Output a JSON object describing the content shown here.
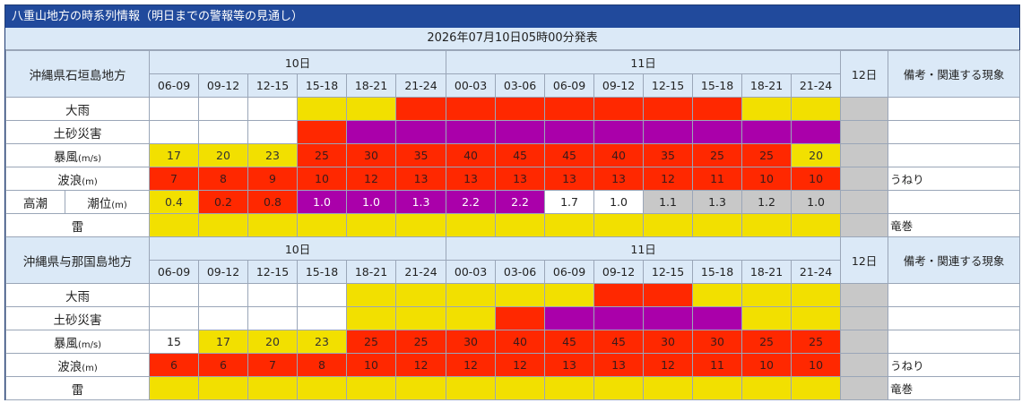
{
  "title": "八重山地方の時系列情報（明日までの警報等の見通し）",
  "issued": "2026年07月10日05時00分発表",
  "day_labels": {
    "d1": "10日",
    "d2": "11日",
    "d3": "12日"
  },
  "remarks_header": "備考・関連する現象",
  "time_slots": [
    "06-09",
    "09-12",
    "12-15",
    "15-18",
    "18-21",
    "21-24",
    "00-03",
    "03-06",
    "06-09",
    "09-12",
    "12-15",
    "15-18",
    "18-21",
    "21-24"
  ],
  "colors": {
    "white": "#ffffff",
    "yellow": "#f2e000",
    "red": "#ff2800",
    "purple": "#aa00aa",
    "gray": "#c8c8c8",
    "header_bg": "#dbe9f7",
    "title_bg": "#214a9c"
  },
  "areas": [
    {
      "name": "沖縄県石垣島地方",
      "rows": [
        {
          "label": "大雨",
          "unit": "",
          "values": [
            "",
            "",
            "",
            "",
            "",
            "",
            "",
            "",
            "",
            "",
            "",
            "",
            "",
            ""
          ],
          "levels": [
            "w",
            "w",
            "w",
            "y",
            "y",
            "r",
            "r",
            "r",
            "r",
            "r",
            "r",
            "r",
            "y",
            "y"
          ],
          "remark": ""
        },
        {
          "label": "土砂災害",
          "unit": "",
          "values": [
            "",
            "",
            "",
            "",
            "",
            "",
            "",
            "",
            "",
            "",
            "",
            "",
            "",
            ""
          ],
          "levels": [
            "w",
            "w",
            "w",
            "r",
            "p",
            "p",
            "p",
            "p",
            "p",
            "p",
            "p",
            "p",
            "p",
            "p"
          ],
          "remark": ""
        },
        {
          "label": "暴風",
          "unit": "(m/s)",
          "values": [
            "17",
            "20",
            "23",
            "25",
            "30",
            "35",
            "40",
            "45",
            "45",
            "40",
            "35",
            "25",
            "25",
            "20"
          ],
          "levels": [
            "y",
            "y",
            "y",
            "r",
            "r",
            "r",
            "r",
            "r",
            "r",
            "r",
            "r",
            "r",
            "r",
            "y"
          ],
          "remark": ""
        },
        {
          "label": "波浪",
          "unit": "(m)",
          "values": [
            "7",
            "8",
            "9",
            "10",
            "12",
            "13",
            "13",
            "13",
            "13",
            "13",
            "12",
            "11",
            "10",
            "10"
          ],
          "levels": [
            "r",
            "r",
            "r",
            "r",
            "r",
            "r",
            "r",
            "r",
            "r",
            "r",
            "r",
            "r",
            "r",
            "r"
          ],
          "remark": "うねり"
        },
        {
          "label": "潮位",
          "prefix": "高潮",
          "unit": "(m)",
          "values": [
            "0.4",
            "0.2",
            "0.8",
            "1.0",
            "1.0",
            "1.3",
            "2.2",
            "2.2",
            "1.7",
            "1.0",
            "1.1",
            "1.3",
            "1.2",
            "1.0"
          ],
          "levels": [
            "y",
            "r",
            "r",
            "p",
            "p",
            "p",
            "p",
            "p",
            "w",
            "w",
            "g",
            "g",
            "g",
            "g"
          ],
          "remark": ""
        },
        {
          "label": "雷",
          "unit": "",
          "values": [
            "",
            "",
            "",
            "",
            "",
            "",
            "",
            "",
            "",
            "",
            "",
            "",
            "",
            ""
          ],
          "levels": [
            "y",
            "y",
            "y",
            "y",
            "y",
            "y",
            "y",
            "y",
            "y",
            "y",
            "y",
            "y",
            "y",
            "y"
          ],
          "remark": "竜巻"
        }
      ]
    },
    {
      "name": "沖縄県与那国島地方",
      "rows": [
        {
          "label": "大雨",
          "unit": "",
          "values": [
            "",
            "",
            "",
            "",
            "",
            "",
            "",
            "",
            "",
            "",
            "",
            "",
            "",
            ""
          ],
          "levels": [
            "w",
            "w",
            "w",
            "w",
            "y",
            "y",
            "y",
            "y",
            "y",
            "r",
            "r",
            "y",
            "y",
            "y"
          ],
          "remark": ""
        },
        {
          "label": "土砂災害",
          "unit": "",
          "values": [
            "",
            "",
            "",
            "",
            "",
            "",
            "",
            "",
            "",
            "",
            "",
            "",
            "",
            ""
          ],
          "levels": [
            "w",
            "w",
            "w",
            "w",
            "y",
            "y",
            "y",
            "r",
            "p",
            "p",
            "p",
            "p",
            "y",
            "y"
          ],
          "remark": ""
        },
        {
          "label": "暴風",
          "unit": "(m/s)",
          "values": [
            "15",
            "17",
            "20",
            "23",
            "25",
            "25",
            "30",
            "40",
            "45",
            "45",
            "30",
            "30",
            "25",
            "25"
          ],
          "levels": [
            "w",
            "y",
            "y",
            "y",
            "r",
            "r",
            "r",
            "r",
            "r",
            "r",
            "r",
            "r",
            "r",
            "r"
          ],
          "remark": ""
        },
        {
          "label": "波浪",
          "unit": "(m)",
          "values": [
            "6",
            "6",
            "7",
            "8",
            "10",
            "12",
            "12",
            "12",
            "13",
            "13",
            "12",
            "11",
            "10",
            "10"
          ],
          "levels": [
            "r",
            "r",
            "r",
            "r",
            "r",
            "r",
            "r",
            "r",
            "r",
            "r",
            "r",
            "r",
            "r",
            "r"
          ],
          "remark": "うねり"
        },
        {
          "label": "雷",
          "unit": "",
          "values": [
            "",
            "",
            "",
            "",
            "",
            "",
            "",
            "",
            "",
            "",
            "",
            "",
            "",
            ""
          ],
          "levels": [
            "y",
            "y",
            "y",
            "y",
            "y",
            "y",
            "y",
            "y",
            "y",
            "y",
            "y",
            "y",
            "y",
            "y"
          ],
          "remark": "竜巻"
        }
      ]
    }
  ]
}
